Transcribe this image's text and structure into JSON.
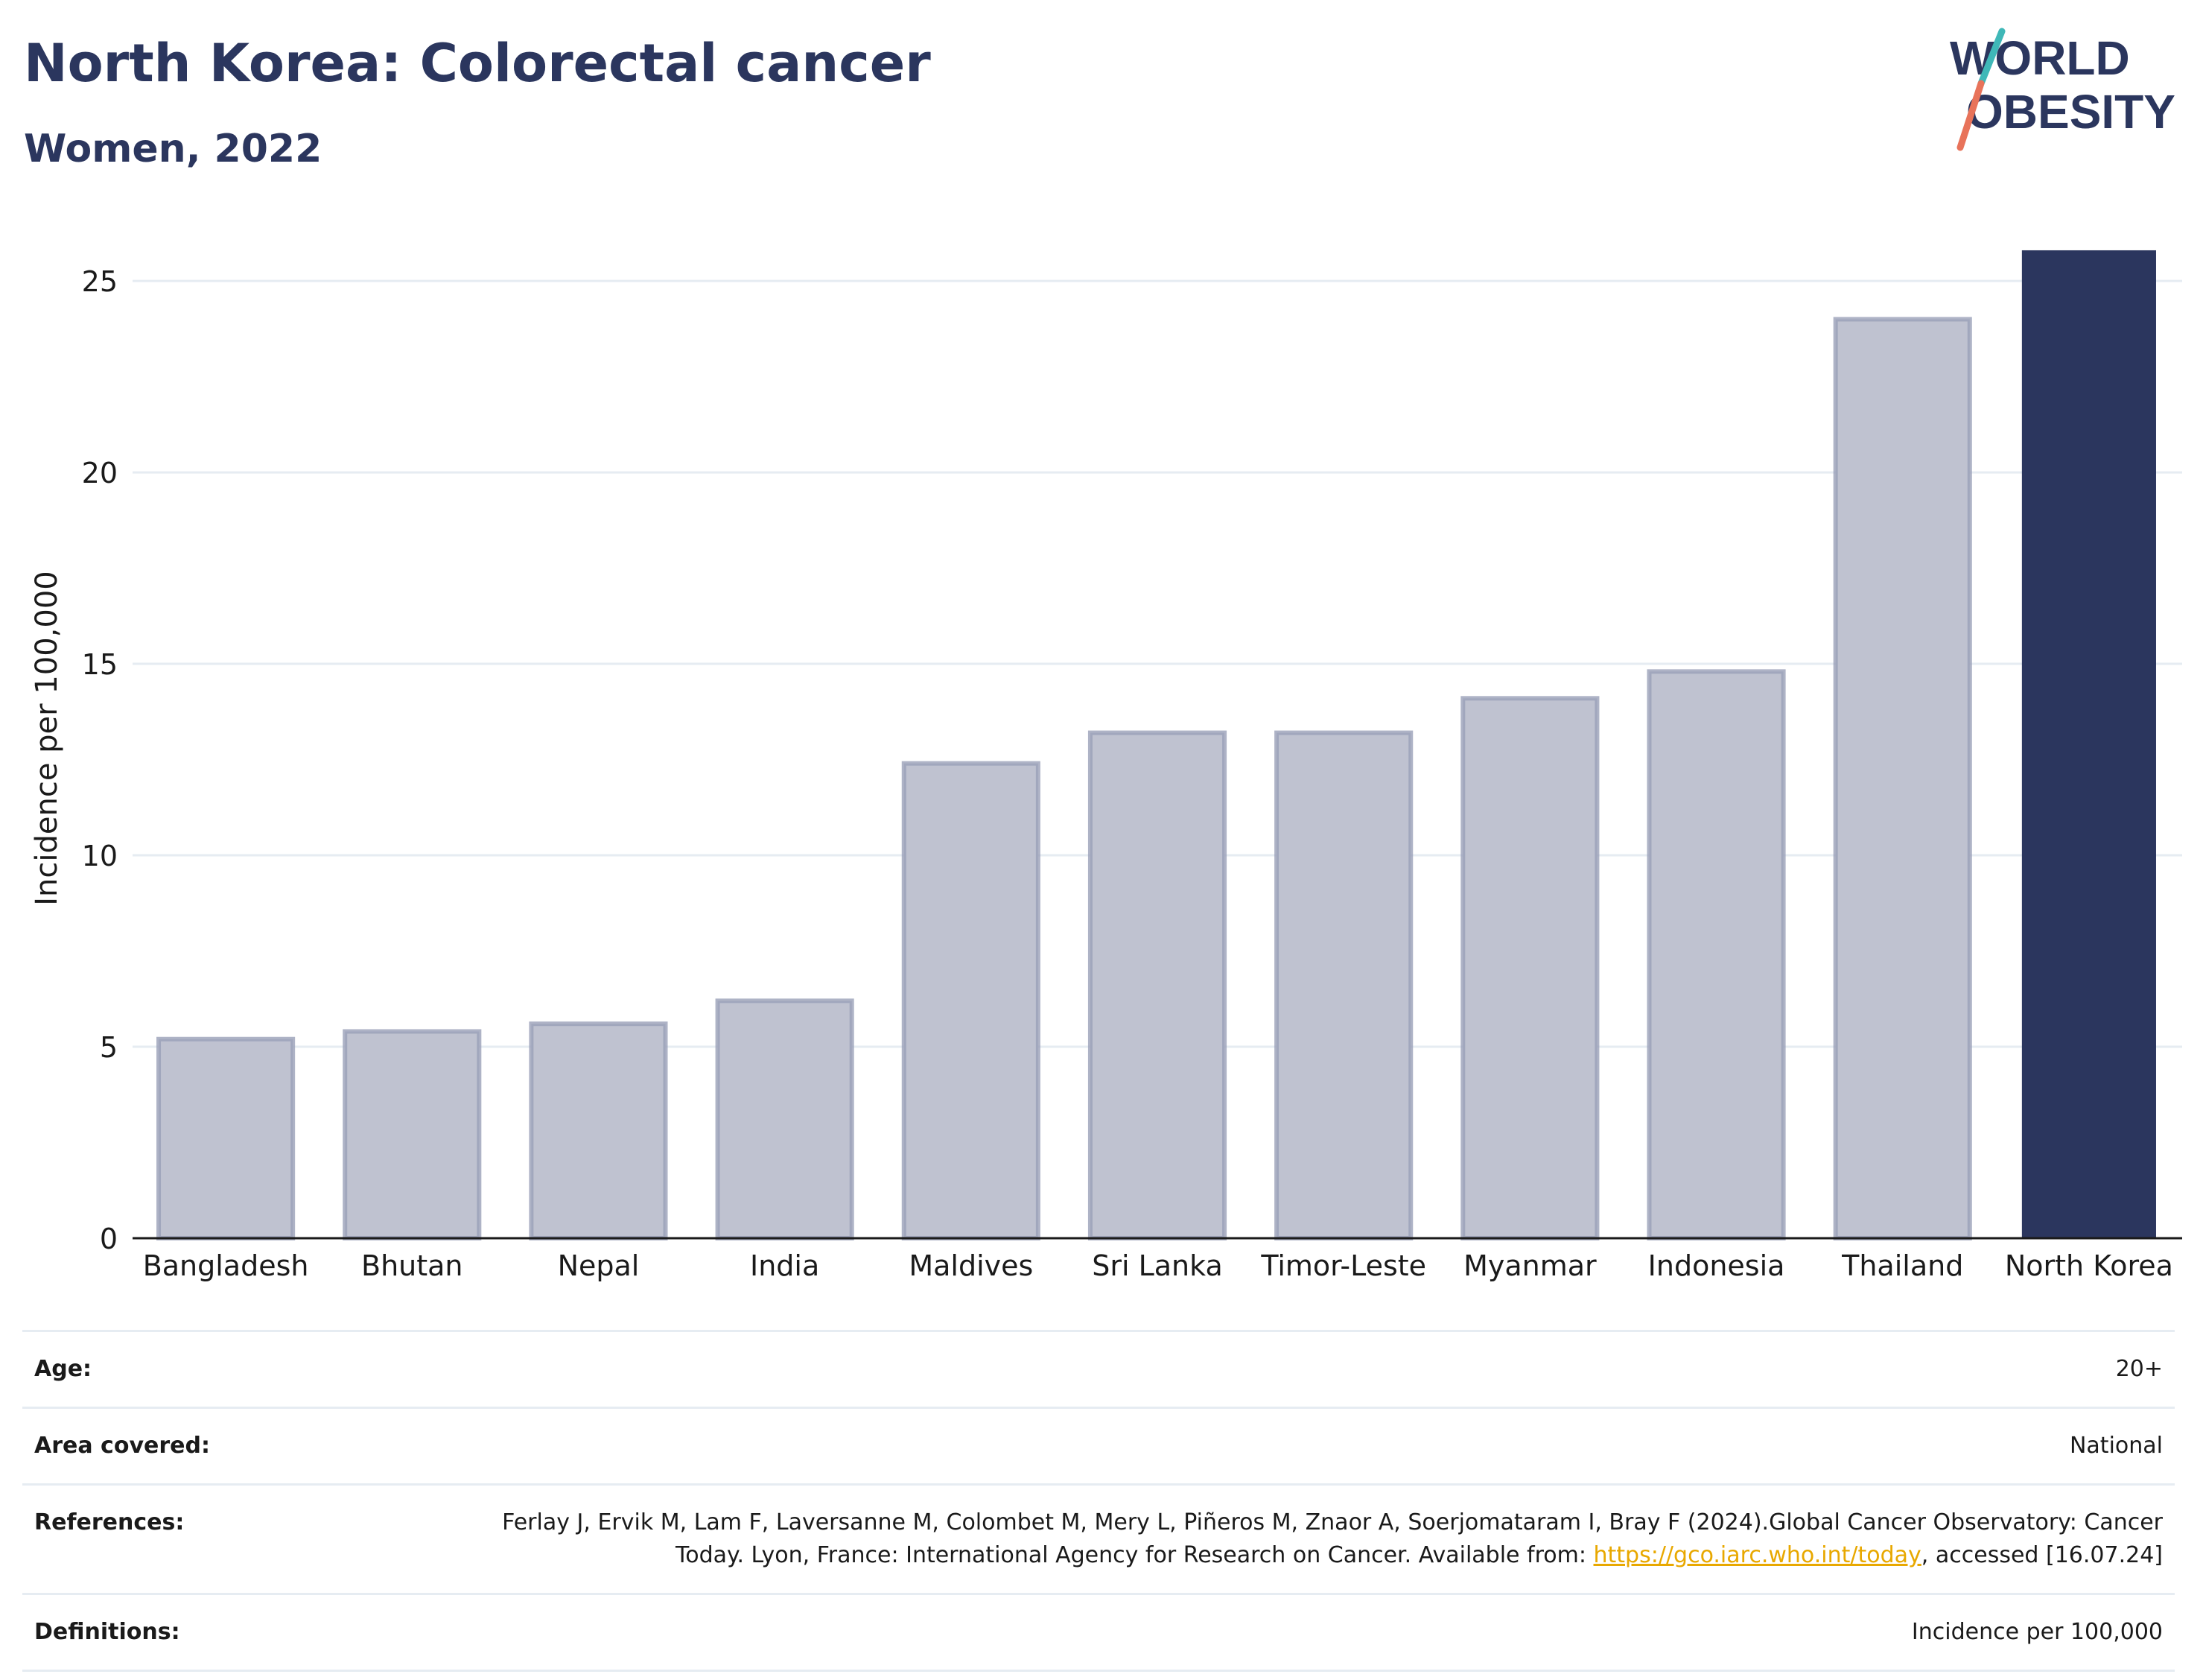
{
  "header": {
    "title": "North Korea: Colorectal cancer",
    "subtitle": "Women, 2022"
  },
  "logo": {
    "line1": "WORLD",
    "line2": "OBESITY",
    "colors": {
      "text": "#2b365e",
      "slash_top": "#3fb8b8",
      "slash_bottom": "#e8735a"
    }
  },
  "chart_data": {
    "type": "bar",
    "categories": [
      "Bangladesh",
      "Bhutan",
      "Nepal",
      "India",
      "Maldives",
      "Sri Lanka",
      "Timor-Leste",
      "Myanmar",
      "Indonesia",
      "Thailand",
      "North Korea"
    ],
    "values": [
      5.2,
      5.4,
      5.6,
      6.2,
      12.4,
      13.2,
      13.2,
      14.1,
      14.8,
      24.0,
      25.8
    ],
    "highlight": "North Korea",
    "ylabel": "Incidence per 100,000",
    "xlabel": "",
    "ylim": [
      0,
      26.5
    ],
    "yticks": [
      0,
      5,
      10,
      15,
      20,
      25
    ],
    "grid": true,
    "colors": {
      "bar": "#bfc2d0",
      "bar_edge": "#9aa0b8",
      "highlight": "#2b365e",
      "grid": "#e6ecf2"
    }
  },
  "meta": {
    "age_label": "Age:",
    "age_value": "20+",
    "area_label": "Area covered:",
    "area_value": "National",
    "references_label": "References:",
    "references_text": "Ferlay J, Ervik M, Lam F, Laversanne M, Colombet M, Mery L, Piñeros M, Znaor A, Soerjomataram I, Bray F (2024).Global Cancer Observatory: Cancer Today. Lyon, France: International Agency for Research on Cancer. Available from: ",
    "references_link": "https://gco.iarc.who.int/today",
    "references_tail": ", accessed [16.07.24]",
    "definitions_label": "Definitions:",
    "definitions_value": "Incidence per 100,000"
  }
}
